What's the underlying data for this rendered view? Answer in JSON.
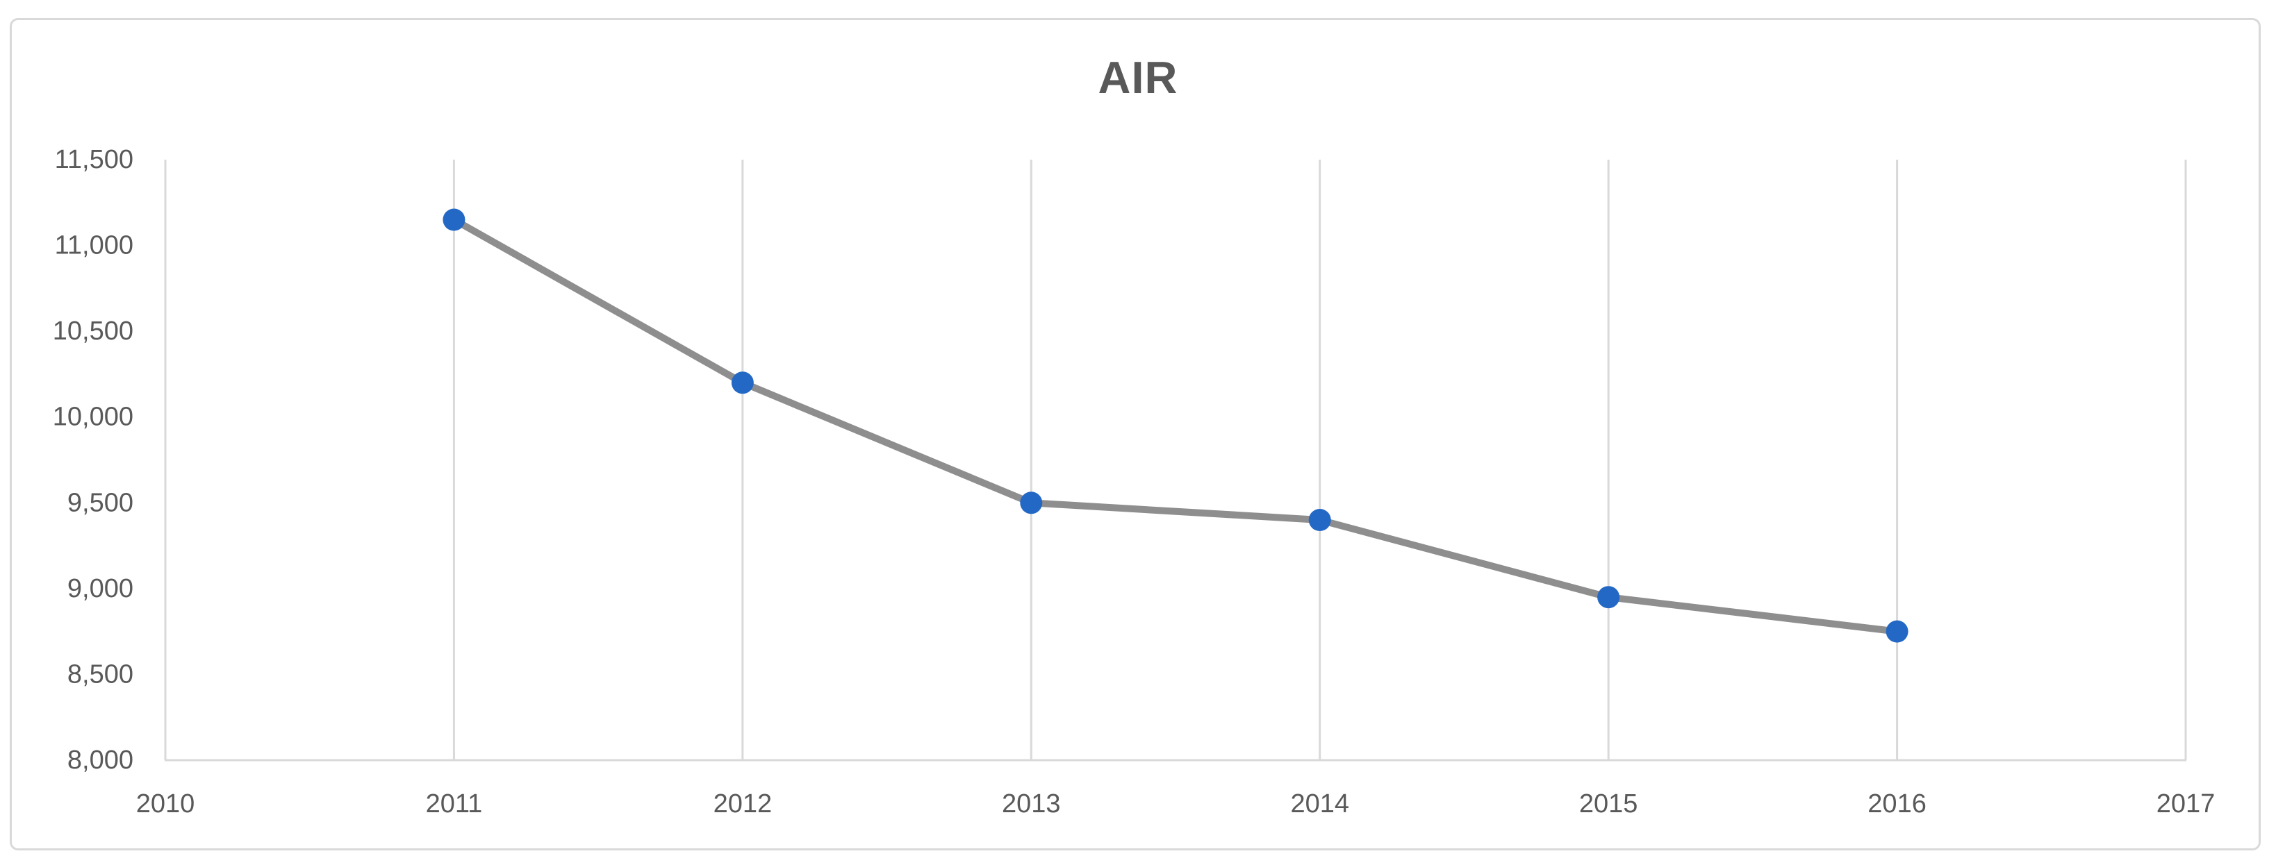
{
  "chart": {
    "title": "AIR"
  },
  "chart_data": {
    "type": "line",
    "title": "AIR",
    "series": [
      {
        "name": "AIR",
        "x": [
          2011,
          2012,
          2013,
          2014,
          2015,
          2016
        ],
        "values": [
          11150,
          10200,
          9500,
          9400,
          8950,
          8750
        ]
      }
    ],
    "xlabel": "",
    "ylabel": "",
    "xlim": [
      2010,
      2017
    ],
    "ylim": [
      8000,
      11500
    ],
    "x_tick_values": [
      2010,
      2011,
      2012,
      2013,
      2014,
      2015,
      2016,
      2017
    ],
    "x_tick_labels": [
      "2010",
      "2011",
      "2012",
      "2013",
      "2014",
      "2015",
      "2016",
      "2017"
    ],
    "y_tick_values": [
      8000,
      8500,
      9000,
      9500,
      10000,
      10500,
      11000,
      11500
    ],
    "y_tick_labels": [
      "8,000",
      "8,500",
      "9,000",
      "9,500",
      "10,000",
      "10,500",
      "11,000",
      "11,500"
    ],
    "grid": "vertical-only",
    "legend": "none",
    "colors": {
      "line": "#8E8E8E",
      "marker": "#2368C4",
      "gridline": "#D9D9D9",
      "axis_line": "#D9D9D9",
      "tick_text": "#595959",
      "title_text": "#595959",
      "frame_border": "#D9D9D9",
      "background": "#FFFFFF"
    }
  }
}
